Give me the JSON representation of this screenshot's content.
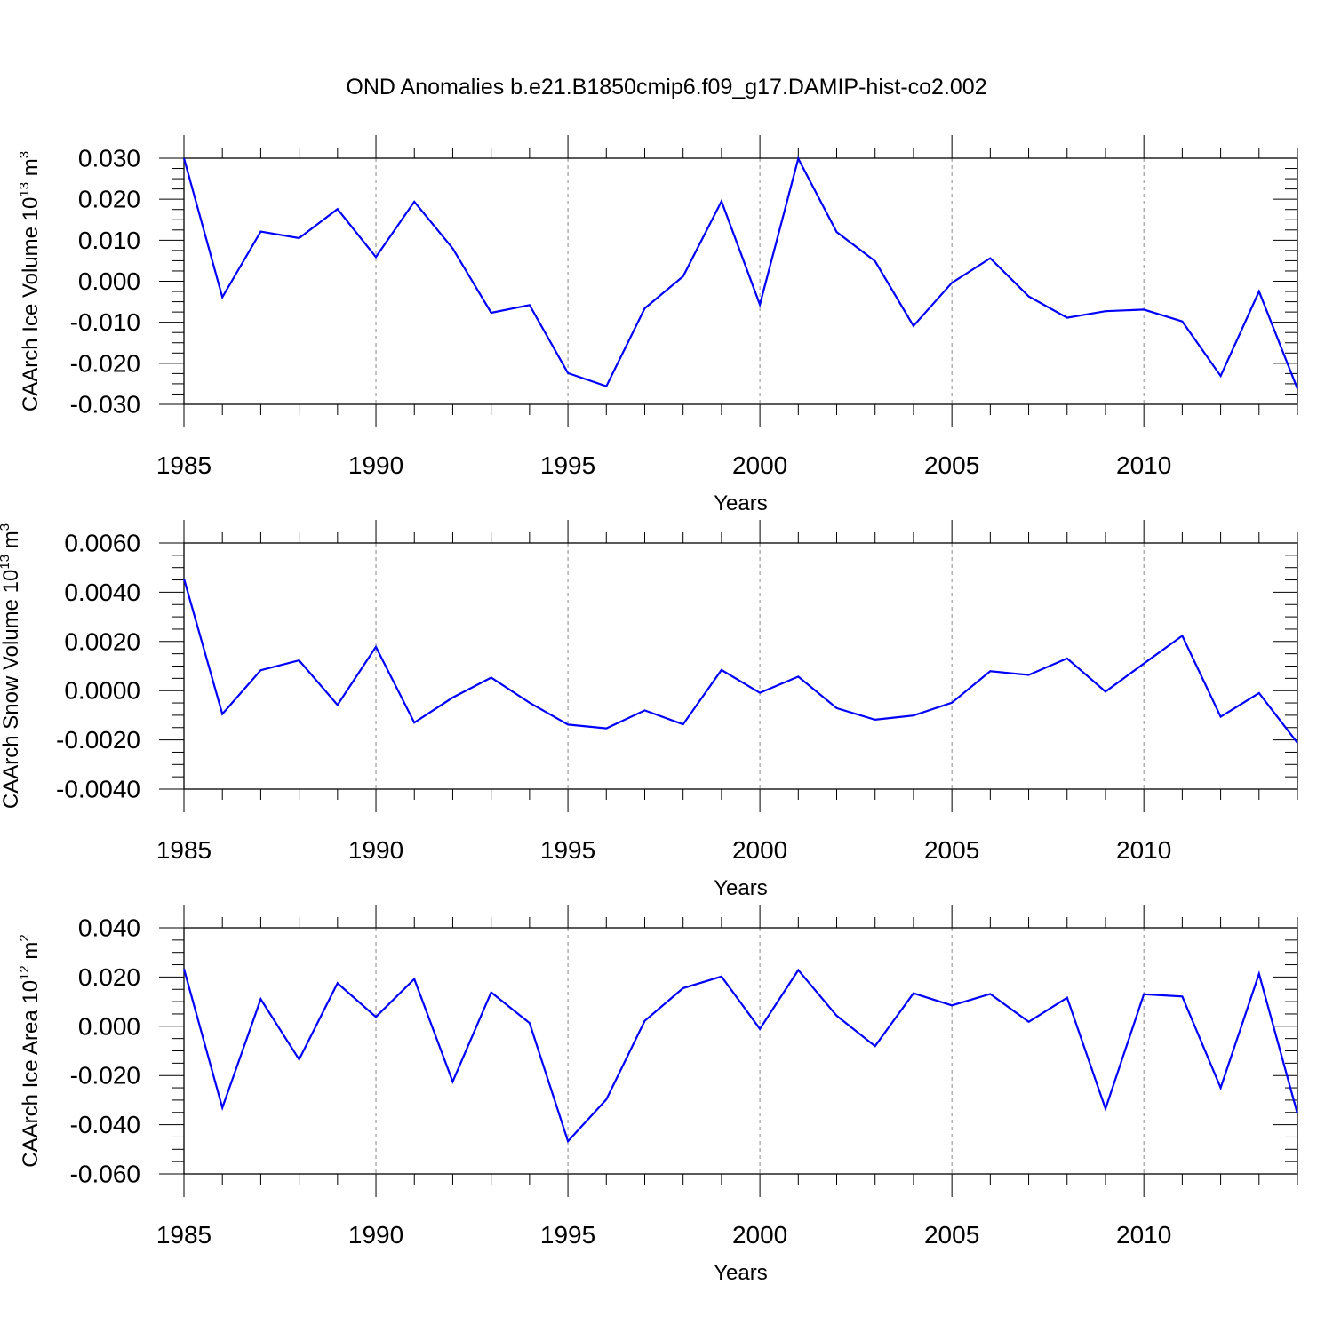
{
  "title": "OND Anomalies b.e21.B1850cmip6.f09_g17.DAMIP-hist-co2.002",
  "colors": {
    "line": "#0000ff",
    "grid": "#888888",
    "axis": "#000000"
  },
  "chart_data": [
    {
      "type": "line",
      "name": "ice-volume",
      "title": "OND Anomalies b.e21.B1850cmip6.f09_g17.DAMIP-hist-co2.002",
      "ylabel": {
        "base": "CAArch Ice Volume 10",
        "exp": "13",
        "unit": " m",
        "unit_exp": "3"
      },
      "xlabel": "Years",
      "xlim": [
        1985,
        2014
      ],
      "ylim": [
        -0.03,
        0.03
      ],
      "xticks": [
        "1985",
        "1990",
        "1995",
        "2000",
        "2005",
        "2010"
      ],
      "yticks": [
        {
          "value": 0.03,
          "label": "0.030"
        },
        {
          "value": 0.02,
          "label": "0.020"
        },
        {
          "value": 0.01,
          "label": "0.010"
        },
        {
          "value": 0.0,
          "label": "0.000"
        },
        {
          "value": -0.01,
          "label": "-0.010"
        },
        {
          "value": -0.02,
          "label": "-0.020"
        },
        {
          "value": -0.03,
          "label": "-0.030"
        }
      ],
      "x": [
        1985,
        1986,
        1987,
        1988,
        1989,
        1990,
        1991,
        1992,
        1993,
        1994,
        1995,
        1996,
        1997,
        1998,
        1999,
        2000,
        2001,
        2002,
        2003,
        2004,
        2005,
        2006,
        2007,
        2008,
        2009,
        2010,
        2011,
        2012,
        2013,
        2014
      ],
      "values": [
        0.03,
        -0.0039,
        0.0121,
        0.0105,
        0.0176,
        0.0059,
        0.0194,
        0.008,
        -0.0077,
        -0.0058,
        -0.0224,
        -0.0256,
        -0.0066,
        0.0012,
        0.0195,
        -0.0057,
        0.0299,
        0.012,
        0.0049,
        -0.0109,
        -0.0004,
        0.0056,
        -0.0037,
        -0.0089,
        -0.0073,
        -0.0069,
        -0.0098,
        -0.0231,
        -0.0025,
        -0.0262
      ]
    },
    {
      "type": "line",
      "name": "snow-volume",
      "ylabel": {
        "base": "CAArch Snow Volume 10",
        "exp": "13",
        "unit": " m",
        "unit_exp": "3"
      },
      "xlabel": "Years",
      "xlim": [
        1985,
        2014
      ],
      "ylim": [
        -0.004,
        0.006
      ],
      "xticks": [
        "1985",
        "1990",
        "1995",
        "2000",
        "2005",
        "2010"
      ],
      "yticks": [
        {
          "value": 0.006,
          "label": "0.0060"
        },
        {
          "value": 0.004,
          "label": "0.0040"
        },
        {
          "value": 0.002,
          "label": "0.0020"
        },
        {
          "value": 0.0,
          "label": "0.0000"
        },
        {
          "value": -0.002,
          "label": "-0.0020"
        },
        {
          "value": -0.004,
          "label": "-0.0040"
        }
      ],
      "x": [
        1985,
        1986,
        1987,
        1988,
        1989,
        1990,
        1991,
        1992,
        1993,
        1994,
        1995,
        1996,
        1997,
        1998,
        1999,
        2000,
        2001,
        2002,
        2003,
        2004,
        2005,
        2006,
        2007,
        2008,
        2009,
        2010,
        2011,
        2012,
        2013,
        2014
      ],
      "values": [
        0.00455,
        -0.00095,
        0.00083,
        0.00123,
        -0.00058,
        0.00178,
        -0.0013,
        -0.00028,
        0.00053,
        -0.00049,
        -0.00138,
        -0.00153,
        -0.0008,
        -0.00137,
        0.00084,
        -9e-05,
        0.00057,
        -0.00071,
        -0.00118,
        -0.00101,
        -0.00049,
        0.00079,
        0.00064,
        0.00131,
        -4e-05,
        0.0011,
        0.00223,
        -0.00106,
        -0.0001,
        -0.00212
      ]
    },
    {
      "type": "line",
      "name": "ice-area",
      "ylabel": {
        "base": "CAArch Ice Area 10",
        "exp": "12",
        "unit": " m",
        "unit_exp": "2"
      },
      "xlabel": "Years",
      "xlim": [
        1985,
        2014
      ],
      "ylim": [
        -0.06,
        0.04
      ],
      "xticks": [
        "1985",
        "1990",
        "1995",
        "2000",
        "2005",
        "2010"
      ],
      "yticks": [
        {
          "value": 0.04,
          "label": "0.040"
        },
        {
          "value": 0.02,
          "label": "0.020"
        },
        {
          "value": 0.0,
          "label": "0.000"
        },
        {
          "value": -0.02,
          "label": "-0.020"
        },
        {
          "value": -0.04,
          "label": "-0.040"
        },
        {
          "value": -0.06,
          "label": "-0.060"
        }
      ],
      "x": [
        1985,
        1986,
        1987,
        1988,
        1989,
        1990,
        1991,
        1992,
        1993,
        1994,
        1995,
        1996,
        1997,
        1998,
        1999,
        2000,
        2001,
        2002,
        2003,
        2004,
        2005,
        2006,
        2007,
        2008,
        2009,
        2010,
        2011,
        2012,
        2013,
        2014
      ],
      "values": [
        0.0233,
        -0.0331,
        0.011,
        -0.0135,
        0.0175,
        0.0038,
        0.0192,
        -0.0225,
        0.0138,
        0.0013,
        -0.0467,
        -0.0297,
        0.0022,
        0.0155,
        0.0202,
        -0.0011,
        0.0228,
        0.0043,
        -0.0081,
        0.0134,
        0.0085,
        0.0131,
        0.0018,
        0.0116,
        -0.0335,
        0.013,
        0.0121,
        -0.025,
        0.0213,
        -0.0355
      ]
    }
  ]
}
